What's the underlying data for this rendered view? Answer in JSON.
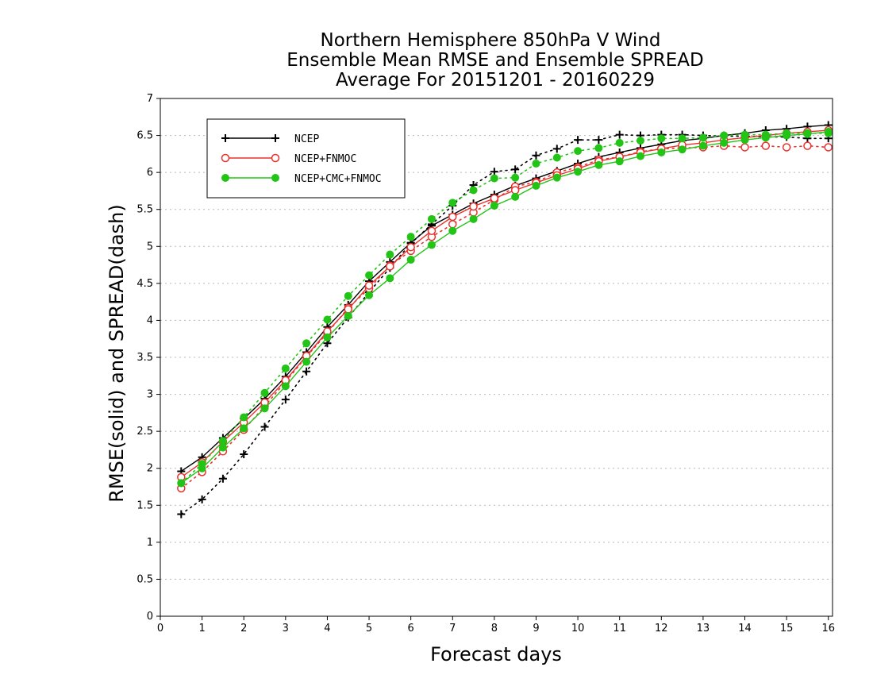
{
  "chart_data": {
    "type": "line",
    "title_lines": [
      "Northern Hemisphere 850hPa V Wind",
      "Ensemble Mean RMSE and Ensemble SPREAD",
      "Average For 20151201 - 20160229"
    ],
    "xlabel": "Forecast days",
    "ylabel": "RMSE(solid) and SPREAD(dash)",
    "xlim": [
      0,
      16.1
    ],
    "ylim": [
      0,
      7
    ],
    "xticks": [
      "0",
      "1",
      "2",
      "3",
      "4",
      "5",
      "6",
      "7",
      "8",
      "9",
      "10",
      "11",
      "12",
      "13",
      "14",
      "15",
      "16"
    ],
    "yticks": [
      "0",
      "0.5",
      "1",
      "1.5",
      "2",
      "2.5",
      "3",
      "3.5",
      "4",
      "4.5",
      "5",
      "5.5",
      "6",
      "6.5",
      "7"
    ],
    "grid": "horizontal dotted",
    "legend_position": "top-left",
    "x": [
      0.5,
      1,
      1.5,
      2,
      2.5,
      3,
      3.5,
      4,
      4.5,
      5,
      5.5,
      6,
      6.5,
      7,
      7.5,
      8,
      8.5,
      9,
      9.5,
      10,
      10.5,
      11,
      11.5,
      12,
      12.5,
      13,
      13.5,
      14,
      14.5,
      15,
      15.5,
      16
    ],
    "series": [
      {
        "name": "NCEP",
        "color": "#000000",
        "marker": "plus",
        "rmse": [
          1.96,
          2.15,
          2.41,
          2.67,
          2.94,
          3.24,
          3.57,
          3.91,
          4.21,
          4.53,
          4.79,
          5.05,
          5.28,
          5.43,
          5.58,
          5.7,
          5.82,
          5.92,
          6.02,
          6.12,
          6.21,
          6.27,
          6.33,
          6.38,
          6.43,
          6.46,
          6.5,
          6.53,
          6.57,
          6.59,
          6.62,
          6.64
        ],
        "spread": [
          1.38,
          1.58,
          1.86,
          2.19,
          2.56,
          2.93,
          3.31,
          3.69,
          4.04,
          4.38,
          4.71,
          5.04,
          5.3,
          5.55,
          5.83,
          6.01,
          6.04,
          6.23,
          6.32,
          6.44,
          6.44,
          6.51,
          6.5,
          6.51,
          6.51,
          6.5,
          6.49,
          6.49,
          6.48,
          6.48,
          6.46,
          6.46
        ]
      },
      {
        "name": "NCEP+FNMOC",
        "color": "#e8322e",
        "marker": "open-circle",
        "rmse": [
          1.88,
          2.08,
          2.36,
          2.62,
          2.89,
          3.19,
          3.52,
          3.85,
          4.15,
          4.47,
          4.73,
          4.99,
          5.21,
          5.4,
          5.54,
          5.65,
          5.76,
          5.86,
          5.96,
          6.05,
          6.15,
          6.21,
          6.27,
          6.32,
          6.37,
          6.4,
          6.44,
          6.47,
          6.5,
          6.53,
          6.55,
          6.57
        ],
        "spread": [
          1.73,
          1.95,
          2.23,
          2.52,
          2.84,
          3.17,
          3.51,
          3.83,
          4.17,
          4.43,
          4.74,
          4.94,
          5.13,
          5.3,
          5.46,
          5.63,
          5.81,
          5.87,
          6.0,
          6.07,
          6.17,
          6.21,
          6.28,
          6.32,
          6.33,
          6.34,
          6.36,
          6.34,
          6.36,
          6.34,
          6.36,
          6.34
        ]
      },
      {
        "name": "NCEP+CMC+FNMOC",
        "color": "#22c416",
        "marker": "filled-circle",
        "rmse": [
          1.8,
          2.0,
          2.28,
          2.54,
          2.81,
          3.11,
          3.44,
          3.77,
          4.06,
          4.34,
          4.57,
          4.82,
          5.02,
          5.21,
          5.37,
          5.55,
          5.67,
          5.82,
          5.93,
          6.01,
          6.1,
          6.15,
          6.22,
          6.27,
          6.31,
          6.36,
          6.4,
          6.44,
          6.47,
          6.5,
          6.52,
          6.55
        ],
        "spread": [
          1.8,
          2.06,
          2.37,
          2.69,
          3.02,
          3.35,
          3.69,
          4.01,
          4.33,
          4.61,
          4.89,
          5.13,
          5.37,
          5.59,
          5.76,
          5.92,
          5.93,
          6.12,
          6.2,
          6.29,
          6.33,
          6.4,
          6.43,
          6.46,
          6.46,
          6.47,
          6.5,
          6.51,
          6.51,
          6.53,
          6.53,
          6.53
        ]
      }
    ]
  }
}
